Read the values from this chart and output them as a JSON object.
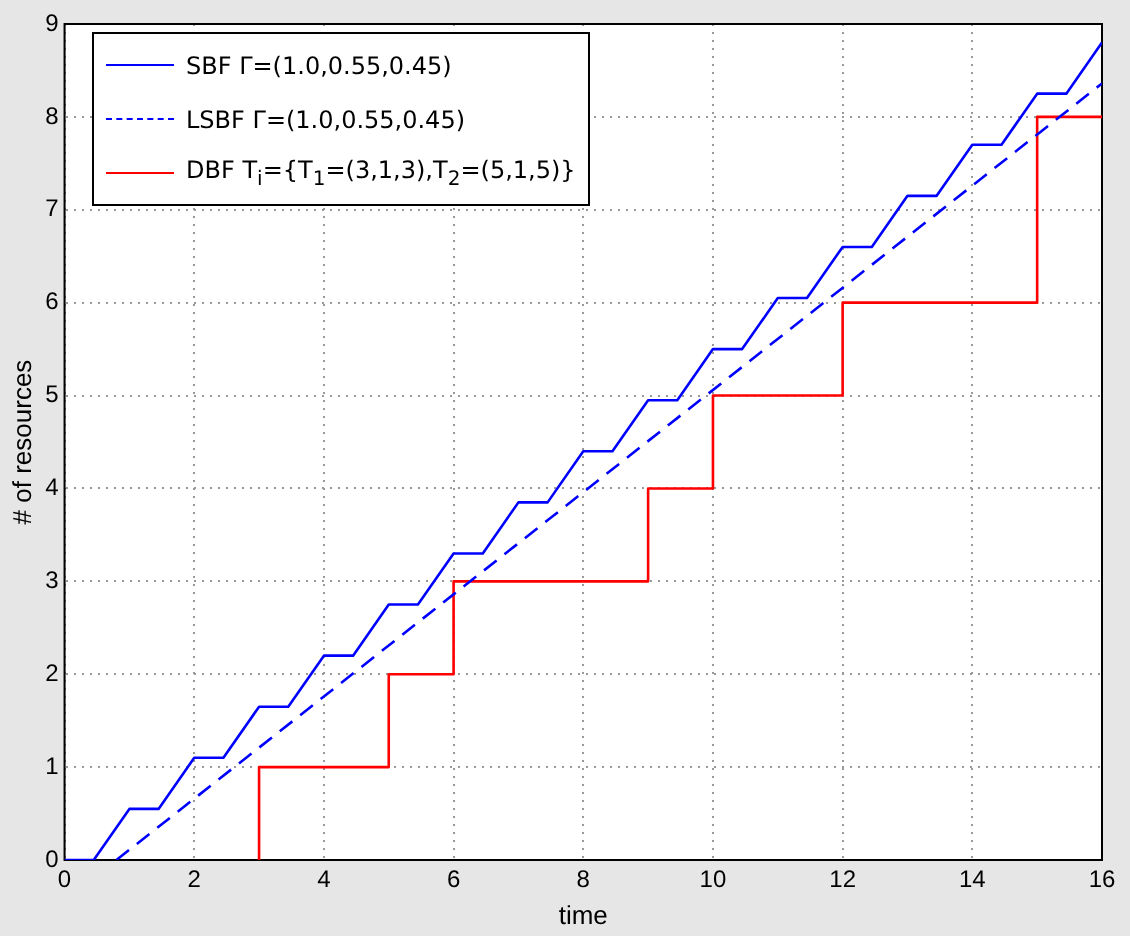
{
  "chart_data": {
    "type": "line",
    "xlabel": "time",
    "ylabel": "# of resources",
    "xlim": [
      0,
      16
    ],
    "ylim": [
      0,
      9
    ],
    "xticks": [
      0,
      2,
      4,
      6,
      8,
      10,
      12,
      14,
      16
    ],
    "yticks": [
      0,
      1,
      2,
      3,
      4,
      5,
      6,
      7,
      8,
      9
    ],
    "grid": true,
    "legend": "top left",
    "marker": "none",
    "series": [
      {
        "name": "SBF Γ=(1.0,0.55,0.45)",
        "type": "line",
        "color": "#0000ff",
        "line_style": "solid",
        "x": [
          0,
          0.45,
          1,
          1.45,
          2,
          2.45,
          3,
          3.45,
          4,
          4.45,
          5,
          5.45,
          6,
          6.45,
          7,
          7.45,
          8,
          8.45,
          9,
          9.45,
          10,
          10.45,
          11,
          11.45,
          12,
          12.45,
          13,
          13.45,
          14,
          14.45,
          15,
          15.45,
          16
        ],
        "values": [
          0,
          0,
          0.55,
          0.55,
          1.1,
          1.1,
          1.65,
          1.65,
          2.2,
          2.2,
          2.75,
          2.75,
          3.3,
          3.3,
          3.85,
          3.85,
          4.4,
          4.4,
          4.95,
          4.95,
          5.5,
          5.5,
          6.05,
          6.05,
          6.6,
          6.6,
          7.15,
          7.15,
          7.7,
          7.7,
          8.25,
          8.25,
          8.8
        ]
      },
      {
        "name": "LSBF Γ=(1.0,0.55,0.45)",
        "type": "line",
        "color": "#0000ff",
        "line_style": "dashed",
        "x": [
          0.8,
          16
        ],
        "values": [
          0,
          8.36
        ]
      },
      {
        "name": "DBF T$_{i}$={T$_{1}$=(3,1,3),T$_{2}$=(5,1,5)}",
        "type": "step",
        "color": "#ff0000",
        "line_style": "solid",
        "x": [
          3,
          3,
          5,
          6,
          9,
          10,
          12,
          15,
          16
        ],
        "values": [
          0,
          1,
          2,
          3,
          4,
          5,
          6,
          8,
          8
        ]
      }
    ]
  }
}
